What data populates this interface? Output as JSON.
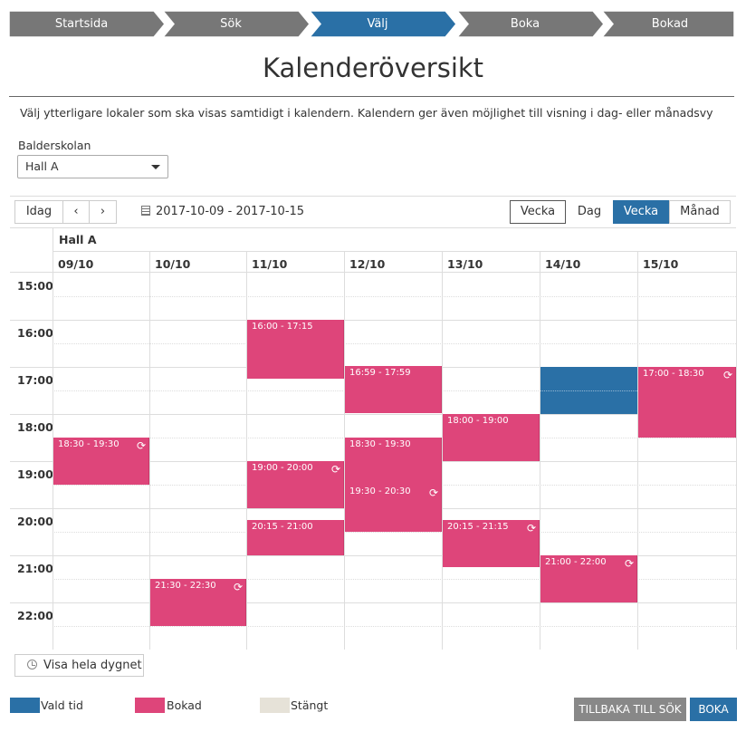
{
  "colors": {
    "step": "#777777",
    "step_active": "#2a70a6",
    "booked": "#de457a",
    "selected": "#2a70a6",
    "closed": "#e6e2d8"
  },
  "stepper": [
    {
      "label": "Startsida",
      "active": false
    },
    {
      "label": "Sök",
      "active": false
    },
    {
      "label": "Välj",
      "active": true
    },
    {
      "label": "Boka",
      "active": false
    },
    {
      "label": "Bokad",
      "active": false
    }
  ],
  "page": {
    "title": "Kalenderöversikt",
    "intro": "Välj ytterligare lokaler som ska visas samtidigt i kalendern. Kalendern ger även möjlighet till visning i dag- eller månadsvy",
    "facility_label": "Balderskolan",
    "room_selected": "Hall A"
  },
  "toolbar": {
    "today": "Idag",
    "prev": "‹",
    "next": "›",
    "date_range": "2017-10-09 - 2017-10-15",
    "views": [
      {
        "label": "Vecka",
        "active": false
      },
      {
        "label": "Dag",
        "active": false
      },
      {
        "label": "Vecka",
        "active": true
      },
      {
        "label": "Månad",
        "active": false
      }
    ]
  },
  "calendar": {
    "room": "Hall A",
    "days": [
      "09/10",
      "10/10",
      "11/10",
      "12/10",
      "13/10",
      "14/10",
      "15/10"
    ],
    "hours": [
      "15:00",
      "16:00",
      "17:00",
      "18:00",
      "19:00",
      "20:00",
      "21:00",
      "22:00"
    ],
    "events": [
      {
        "day": 2,
        "start": "16:00",
        "end": "17:15",
        "label": "16:00 - 17:15",
        "repeat": false,
        "status": "booked"
      },
      {
        "day": 3,
        "start": "16:59",
        "end": "17:59",
        "label": "16:59 - 17:59",
        "repeat": false,
        "status": "booked"
      },
      {
        "day": 5,
        "start": "17:00",
        "end": "18:00",
        "label": "",
        "repeat": false,
        "status": "selected"
      },
      {
        "day": 6,
        "start": "17:00",
        "end": "18:30",
        "label": "17:00 - 18:30",
        "repeat": true,
        "status": "booked"
      },
      {
        "day": 4,
        "start": "18:00",
        "end": "19:00",
        "label": "18:00 - 19:00",
        "repeat": false,
        "status": "booked"
      },
      {
        "day": 0,
        "start": "18:30",
        "end": "19:30",
        "label": "18:30 - 19:30",
        "repeat": true,
        "status": "booked"
      },
      {
        "day": 3,
        "start": "18:30",
        "end": "19:30",
        "label": "18:30 - 19:30",
        "repeat": false,
        "status": "booked"
      },
      {
        "day": 2,
        "start": "19:00",
        "end": "20:00",
        "label": "19:00 - 20:00",
        "repeat": true,
        "status": "booked"
      },
      {
        "day": 3,
        "start": "19:30",
        "end": "20:30",
        "label": "19:30 - 20:30",
        "repeat": true,
        "status": "booked"
      },
      {
        "day": 2,
        "start": "20:15",
        "end": "21:00",
        "label": "20:15 - 21:00",
        "repeat": false,
        "status": "booked"
      },
      {
        "day": 4,
        "start": "20:15",
        "end": "21:15",
        "label": "20:15 - 21:15",
        "repeat": true,
        "status": "booked"
      },
      {
        "day": 5,
        "start": "21:00",
        "end": "22:00",
        "label": "21:00 - 22:00",
        "repeat": true,
        "status": "booked"
      },
      {
        "day": 1,
        "start": "21:30",
        "end": "22:30",
        "label": "21:30 - 22:30",
        "repeat": true,
        "status": "booked"
      }
    ]
  },
  "show_all_label": "Visa hela dygnet",
  "legend": [
    {
      "label": "Vald tid",
      "color": "#2a70a6"
    },
    {
      "label": "Bokad",
      "color": "#de457a"
    },
    {
      "label": "Stängt",
      "color": "#e6e2d8"
    }
  ],
  "buttons": {
    "back": "TILLBAKA TILL SÖK",
    "book": "BOKA"
  }
}
